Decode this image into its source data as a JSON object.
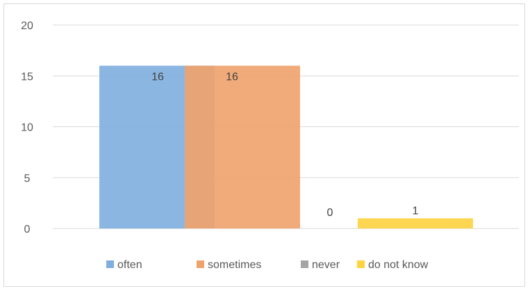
{
  "chart_data": {
    "type": "bar",
    "categories": [
      ""
    ],
    "ylim": [
      0,
      20
    ],
    "yticks": [
      0,
      5,
      10,
      15,
      20
    ],
    "grid": true,
    "legend_position": "bottom",
    "series": [
      {
        "name": "often",
        "values": [
          16
        ],
        "color": "#7FAEDF",
        "label": "16"
      },
      {
        "name": "sometimes",
        "values": [
          16
        ],
        "color": "#F0A26B",
        "label": "16"
      },
      {
        "name": "never",
        "values": [
          0
        ],
        "color": "#A5A5A5",
        "label": "0"
      },
      {
        "name": "do not know",
        "values": [
          1
        ],
        "color": "#FFD23F",
        "label": "1"
      }
    ]
  }
}
